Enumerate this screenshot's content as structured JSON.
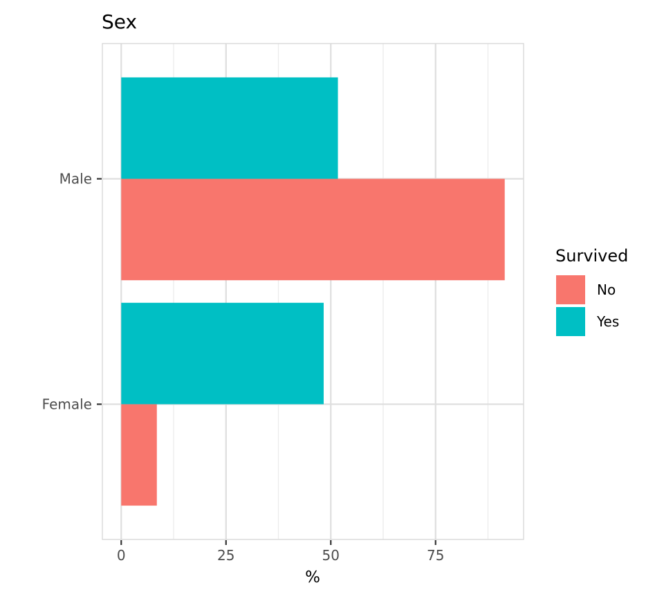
{
  "chart_data": {
    "type": "bar",
    "orientation": "horizontal",
    "title": "Sex",
    "xlabel": "%",
    "ylabel": "",
    "categories": [
      "Female",
      "Male"
    ],
    "xlim": [
      -4.5,
      96
    ],
    "x_ticks": [
      0,
      25,
      50,
      75
    ],
    "x_tick_labels": [
      "0",
      "25",
      "50",
      "75"
    ],
    "series": [
      {
        "name": "No",
        "color": "#F8766D",
        "values": [
          8.5,
          91.5
        ]
      },
      {
        "name": "Yes",
        "color": "#00BFC4",
        "values": [
          48.3,
          51.7
        ]
      }
    ],
    "legend": {
      "title": "Survived",
      "position": "right",
      "entries": [
        "No",
        "Yes"
      ]
    },
    "grid": true,
    "theme": {
      "panel_border": "#d9d9d9",
      "grid_major": "#dedede",
      "grid_minor": "#ebebeb"
    }
  }
}
